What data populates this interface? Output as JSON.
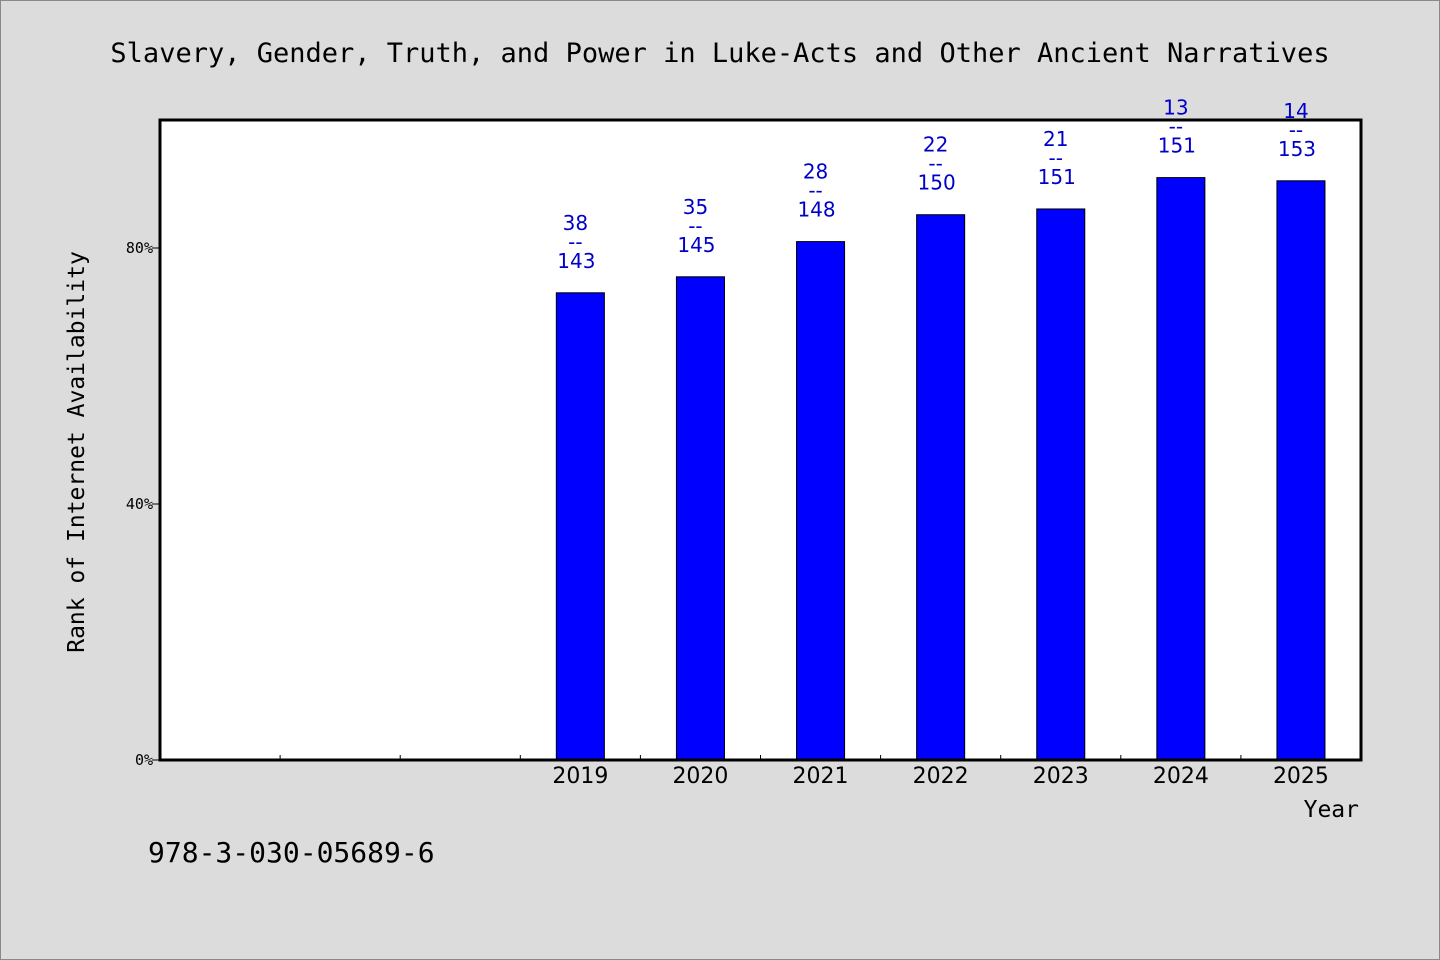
{
  "footer": {
    "isbn": "978-3-030-05689-6"
  },
  "chart_data": {
    "type": "bar",
    "title": "Slavery, Gender, Truth, and Power in Luke-Acts and Other Ancient Narratives",
    "xlabel": "Year",
    "ylabel": "Rank of Internet Availability",
    "categories": [
      "",
      "",
      "",
      "2019",
      "2020",
      "2021",
      "2022",
      "2023",
      "2024",
      "2025"
    ],
    "values": [
      null,
      null,
      null,
      73,
      75.5,
      81,
      85.2,
      86.1,
      91,
      90.5
    ],
    "labels": [
      null,
      null,
      null,
      [
        "38",
        "--",
        "143"
      ],
      [
        "35",
        "--",
        "145"
      ],
      [
        "28",
        "--",
        "148"
      ],
      [
        "22",
        "--",
        "150"
      ],
      [
        "21",
        "--",
        "151"
      ],
      [
        "13",
        "--",
        "151"
      ],
      [
        "14",
        "--",
        "153"
      ]
    ],
    "yticks": [
      0,
      40,
      80
    ],
    "ytick_labels": [
      "0%",
      "40%",
      "80%"
    ],
    "ylim": [
      0,
      100
    ],
    "grid": false,
    "colors": {
      "bar": "#0000ff",
      "label": "#0000c8",
      "background": "#dcdcdc",
      "plot": "#ffffff"
    }
  }
}
